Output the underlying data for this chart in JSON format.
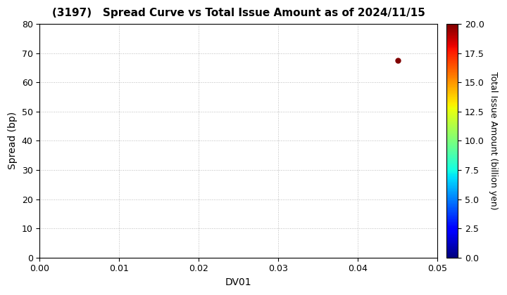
{
  "title": "(3197)   Spread Curve vs Total Issue Amount as of 2024/11/15",
  "xlabel": "DV01",
  "ylabel": "Spread (bp)",
  "colorbar_label": "Total Issue Amount (billion yen)",
  "xlim": [
    0.0,
    0.05
  ],
  "ylim": [
    0,
    80
  ],
  "xticks": [
    0.0,
    0.01,
    0.02,
    0.03,
    0.04,
    0.05
  ],
  "yticks": [
    0,
    10,
    20,
    30,
    40,
    50,
    60,
    70,
    80
  ],
  "colorbar_ticks": [
    0.0,
    2.5,
    5.0,
    7.5,
    10.0,
    12.5,
    15.0,
    17.5,
    20.0
  ],
  "cmap_vmin": 0.0,
  "cmap_vmax": 20.0,
  "scatter_x": [
    0.045
  ],
  "scatter_y": [
    67.5
  ],
  "scatter_color": [
    20.0
  ],
  "scatter_size": 25,
  "background_color": "#ffffff",
  "grid_color": "#bbbbbb",
  "title_fontsize": 11,
  "axis_label_fontsize": 10,
  "tick_fontsize": 9,
  "colorbar_fontsize": 9,
  "colorbar_tick_fontsize": 9
}
